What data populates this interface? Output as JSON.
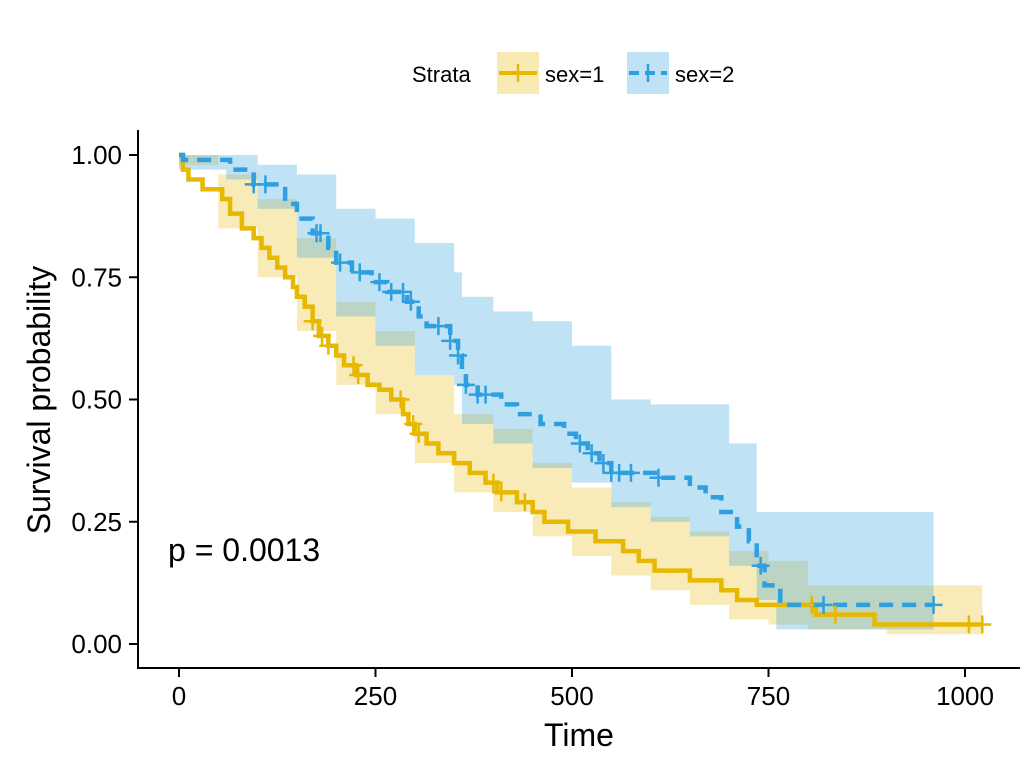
{
  "chart_data": {
    "type": "line",
    "subtype": "kaplan-meier",
    "xlabel": "Time",
    "ylabel": "Survival probability",
    "xlim": [
      0,
      1022
    ],
    "ylim": [
      0,
      1
    ],
    "xticks": [
      0,
      250,
      500,
      750,
      1000
    ],
    "yticks": [
      0,
      0.25,
      0.5,
      0.75,
      1.0
    ],
    "xtick_labels": [
      "0",
      "250",
      "500",
      "750",
      "1000"
    ],
    "ytick_labels": [
      "0.00",
      "0.25",
      "0.50",
      "0.75",
      "1.00"
    ],
    "grid": false,
    "legend": {
      "title": "Strata",
      "placement": "top"
    },
    "annotation": "p = 0.0013",
    "series": [
      {
        "name": "sex=1",
        "color": "#E7B800",
        "line_style": "solid",
        "steps": [
          [
            0,
            1.0
          ],
          [
            5,
            0.97
          ],
          [
            12,
            0.95
          ],
          [
            30,
            0.93
          ],
          [
            55,
            0.91
          ],
          [
            65,
            0.88
          ],
          [
            80,
            0.85
          ],
          [
            95,
            0.83
          ],
          [
            105,
            0.81
          ],
          [
            115,
            0.79
          ],
          [
            125,
            0.77
          ],
          [
            135,
            0.75
          ],
          [
            145,
            0.73
          ],
          [
            150,
            0.71
          ],
          [
            160,
            0.69
          ],
          [
            170,
            0.66
          ],
          [
            178,
            0.63
          ],
          [
            190,
            0.61
          ],
          [
            200,
            0.59
          ],
          [
            210,
            0.57
          ],
          [
            225,
            0.55
          ],
          [
            240,
            0.53
          ],
          [
            255,
            0.52
          ],
          [
            270,
            0.5
          ],
          [
            285,
            0.47
          ],
          [
            292,
            0.45
          ],
          [
            300,
            0.43
          ],
          [
            315,
            0.41
          ],
          [
            330,
            0.39
          ],
          [
            350,
            0.37
          ],
          [
            370,
            0.35
          ],
          [
            390,
            0.33
          ],
          [
            405,
            0.31
          ],
          [
            430,
            0.29
          ],
          [
            450,
            0.27
          ],
          [
            465,
            0.25
          ],
          [
            495,
            0.23
          ],
          [
            530,
            0.21
          ],
          [
            565,
            0.19
          ],
          [
            585,
            0.17
          ],
          [
            605,
            0.15
          ],
          [
            650,
            0.13
          ],
          [
            690,
            0.11
          ],
          [
            710,
            0.09
          ],
          [
            735,
            0.08
          ],
          [
            810,
            0.06
          ],
          [
            885,
            0.04
          ],
          [
            1022,
            0.04
          ]
        ],
        "ci_upper": [
          [
            0,
            1.0
          ],
          [
            50,
            0.96
          ],
          [
            100,
            0.91
          ],
          [
            150,
            0.83
          ],
          [
            200,
            0.7
          ],
          [
            250,
            0.64
          ],
          [
            300,
            0.55
          ],
          [
            350,
            0.47
          ],
          [
            400,
            0.44
          ],
          [
            450,
            0.37
          ],
          [
            500,
            0.32
          ],
          [
            550,
            0.29
          ],
          [
            600,
            0.26
          ],
          [
            650,
            0.23
          ],
          [
            700,
            0.19
          ],
          [
            750,
            0.17
          ],
          [
            800,
            0.12
          ],
          [
            900,
            0.12
          ],
          [
            1022,
            0.12
          ]
        ],
        "ci_lower": [
          [
            0,
            0.98
          ],
          [
            50,
            0.85
          ],
          [
            100,
            0.75
          ],
          [
            150,
            0.64
          ],
          [
            200,
            0.53
          ],
          [
            250,
            0.47
          ],
          [
            300,
            0.37
          ],
          [
            350,
            0.31
          ],
          [
            400,
            0.27
          ],
          [
            450,
            0.22
          ],
          [
            500,
            0.18
          ],
          [
            550,
            0.14
          ],
          [
            600,
            0.11
          ],
          [
            650,
            0.08
          ],
          [
            700,
            0.05
          ],
          [
            750,
            0.04
          ],
          [
            800,
            0.03
          ],
          [
            900,
            0.02
          ],
          [
            1022,
            0.02
          ]
        ],
        "censor_marks": [
          [
            170,
            0.69
          ],
          [
            182,
            0.63
          ],
          [
            190,
            0.61
          ],
          [
            222,
            0.56
          ],
          [
            228,
            0.55
          ],
          [
            282,
            0.49
          ],
          [
            298,
            0.44
          ],
          [
            305,
            0.43
          ],
          [
            400,
            0.3
          ],
          [
            410,
            0.3
          ],
          [
            440,
            0.27
          ],
          [
            805,
            0.06
          ],
          [
            835,
            0.06
          ],
          [
            1005,
            0.04
          ],
          [
            1022,
            0.04
          ]
        ]
      },
      {
        "name": "sex=2",
        "color": "#2E9FDF",
        "line_style": "dashed",
        "steps": [
          [
            0,
            1.0
          ],
          [
            5,
            0.99
          ],
          [
            65,
            0.97
          ],
          [
            95,
            0.94
          ],
          [
            135,
            0.9
          ],
          [
            150,
            0.87
          ],
          [
            170,
            0.84
          ],
          [
            190,
            0.81
          ],
          [
            200,
            0.78
          ],
          [
            220,
            0.76
          ],
          [
            245,
            0.74
          ],
          [
            265,
            0.72
          ],
          [
            290,
            0.7
          ],
          [
            305,
            0.67
          ],
          [
            315,
            0.65
          ],
          [
            345,
            0.62
          ],
          [
            355,
            0.59
          ],
          [
            360,
            0.56
          ],
          [
            365,
            0.53
          ],
          [
            380,
            0.51
          ],
          [
            410,
            0.49
          ],
          [
            430,
            0.47
          ],
          [
            460,
            0.45
          ],
          [
            490,
            0.43
          ],
          [
            505,
            0.41
          ],
          [
            520,
            0.39
          ],
          [
            535,
            0.37
          ],
          [
            550,
            0.35
          ],
          [
            610,
            0.34
          ],
          [
            650,
            0.32
          ],
          [
            670,
            0.3
          ],
          [
            690,
            0.27
          ],
          [
            710,
            0.24
          ],
          [
            725,
            0.21
          ],
          [
            735,
            0.16
          ],
          [
            745,
            0.12
          ],
          [
            765,
            0.08
          ],
          [
            960,
            0.08
          ]
        ],
        "ci_upper": [
          [
            0,
            1.0
          ],
          [
            60,
            1.0
          ],
          [
            100,
            0.98
          ],
          [
            150,
            0.96
          ],
          [
            200,
            0.89
          ],
          [
            250,
            0.87
          ],
          [
            300,
            0.82
          ],
          [
            350,
            0.76
          ],
          [
            360,
            0.71
          ],
          [
            400,
            0.68
          ],
          [
            450,
            0.66
          ],
          [
            500,
            0.61
          ],
          [
            550,
            0.5
          ],
          [
            600,
            0.49
          ],
          [
            650,
            0.49
          ],
          [
            700,
            0.41
          ],
          [
            735,
            0.27
          ],
          [
            800,
            0.27
          ],
          [
            960,
            0.27
          ]
        ],
        "ci_lower": [
          [
            0,
            0.97
          ],
          [
            60,
            0.95
          ],
          [
            100,
            0.89
          ],
          [
            150,
            0.79
          ],
          [
            200,
            0.67
          ],
          [
            250,
            0.61
          ],
          [
            300,
            0.55
          ],
          [
            350,
            0.53
          ],
          [
            360,
            0.45
          ],
          [
            400,
            0.41
          ],
          [
            450,
            0.36
          ],
          [
            500,
            0.33
          ],
          [
            550,
            0.28
          ],
          [
            600,
            0.25
          ],
          [
            650,
            0.22
          ],
          [
            700,
            0.16
          ],
          [
            735,
            0.09
          ],
          [
            760,
            0.03
          ],
          [
            960,
            0.03
          ]
        ],
        "censor_marks": [
          [
            95,
            0.93
          ],
          [
            110,
            0.92
          ],
          [
            175,
            0.84
          ],
          [
            180,
            0.84
          ],
          [
            205,
            0.77
          ],
          [
            230,
            0.76
          ],
          [
            255,
            0.73
          ],
          [
            270,
            0.72
          ],
          [
            285,
            0.7
          ],
          [
            295,
            0.68
          ],
          [
            330,
            0.64
          ],
          [
            345,
            0.64
          ],
          [
            355,
            0.56
          ],
          [
            365,
            0.53
          ],
          [
            380,
            0.51
          ],
          [
            390,
            0.51
          ],
          [
            510,
            0.41
          ],
          [
            525,
            0.37
          ],
          [
            540,
            0.37
          ],
          [
            550,
            0.35
          ],
          [
            560,
            0.34
          ],
          [
            575,
            0.34
          ],
          [
            610,
            0.34
          ],
          [
            740,
            0.12
          ],
          [
            820,
            0.08
          ],
          [
            960,
            0.08
          ]
        ]
      }
    ]
  }
}
